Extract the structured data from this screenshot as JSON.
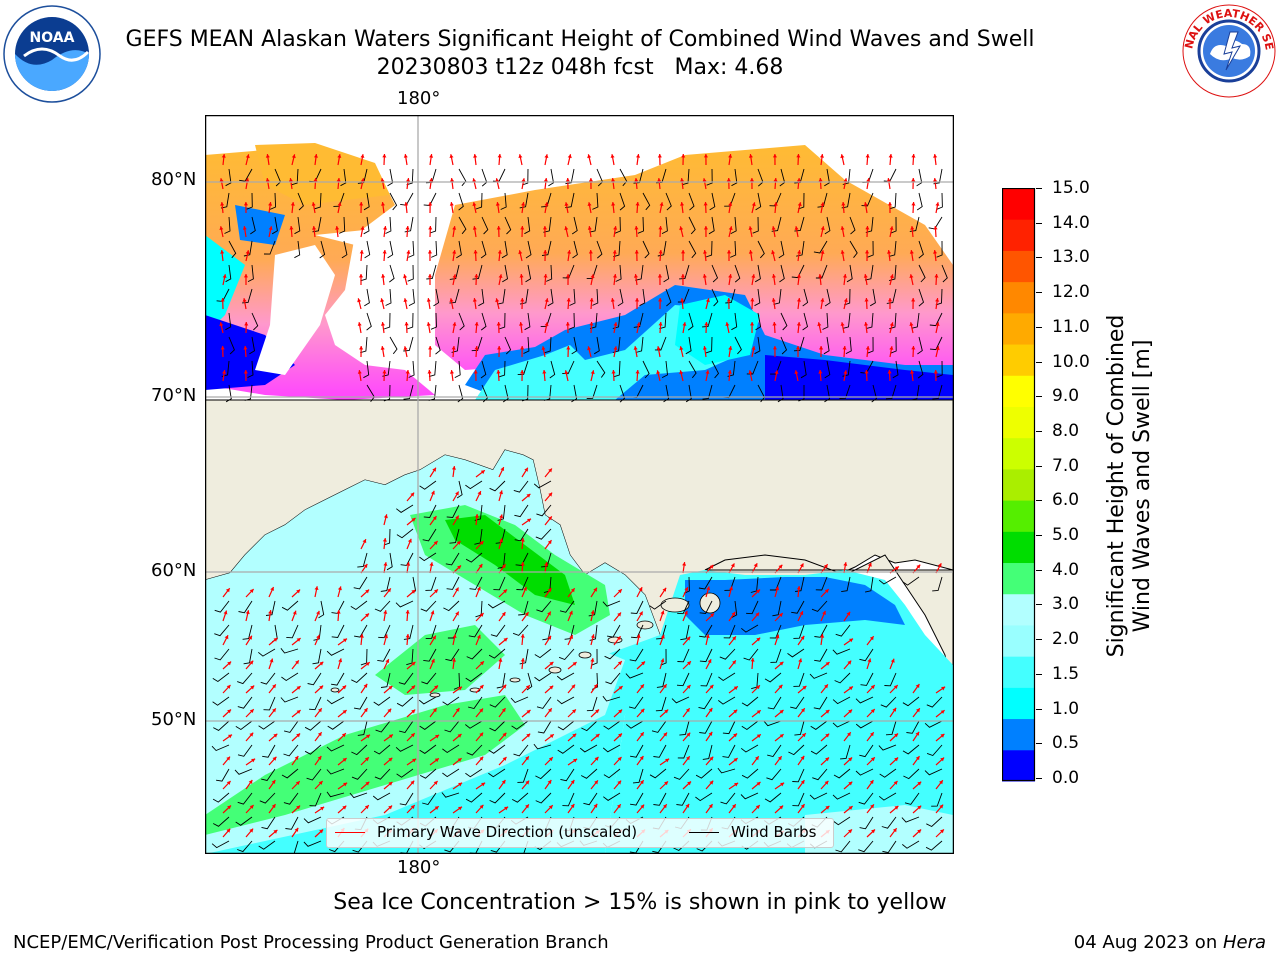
{
  "header": {
    "title": "GEFS MEAN Alaskan Waters Significant Height of Combined Wind Waves and Swell",
    "subtitle": "20230803 t12z 048h fcst   Max: 4.68"
  },
  "logos": {
    "noaa": {
      "text": "NOAA",
      "ring_text": "NATIONAL OCEANIC AND ATMOSPHERIC ADMINISTRATION · U.S. DEPARTMENT OF COMMERCE"
    },
    "nws": {
      "ring_text": "NATIONAL WEATHER SERVICE"
    }
  },
  "map": {
    "lon_label_top": "180°",
    "lon_label_bottom": "180°",
    "lat_labels": [
      "80°N",
      "70°N",
      "60°N",
      "50°N"
    ],
    "land_color": "#efedde",
    "ice_colors": [
      "#ff44ff",
      "#ff99cc",
      "#ffaa55",
      "#ffbb33"
    ],
    "legend": {
      "wave_label": "Primary Wave Direction (unscaled)",
      "wave_color": "#ff0000",
      "wind_label": "Wind Barbs",
      "wind_color": "#000000"
    }
  },
  "colorbar": {
    "label_line1": "Significant Height of Combined",
    "label_line2": "Wind Waves and Swell [m]",
    "ticks": [
      "15.0",
      "14.0",
      "13.0",
      "12.0",
      "11.0",
      "10.0",
      "9.0",
      "8.0",
      "7.0",
      "6.0",
      "5.0",
      "4.0",
      "3.0",
      "2.0",
      "1.5",
      "1.0",
      "0.5",
      "0.0"
    ],
    "colors_bottom_to_top": [
      "#0000ff",
      "#0080ff",
      "#00ffff",
      "#44ffff",
      "#99ffff",
      "#b2ffff",
      "#44ff77",
      "#00dd00",
      "#55ee00",
      "#aaee00",
      "#ccff00",
      "#eeff00",
      "#ffff00",
      "#ffcc00",
      "#ffaa00",
      "#ff8800",
      "#ff5500",
      "#ff2200",
      "#ff0000"
    ]
  },
  "note": "Sea Ice Concentration > 15% is shown in pink to yellow",
  "footer": {
    "left": "NCEP/EMC/Verification Post Processing Product Generation Branch",
    "right_prefix": "04 Aug 2023 on ",
    "right_host": "Hera"
  }
}
